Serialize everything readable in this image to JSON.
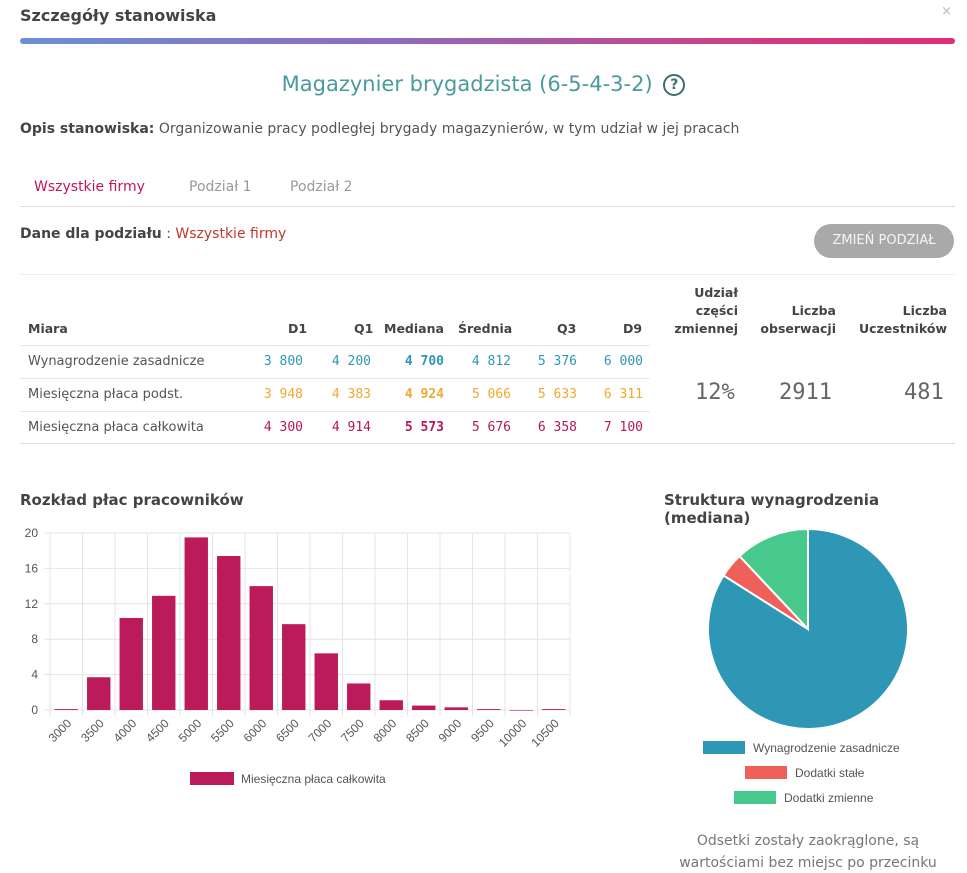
{
  "modal": {
    "title": "Szczegóły stanowiska",
    "close": "×"
  },
  "job": {
    "title": "Magazynier brygadzista (6-5-4-3-2)",
    "help": "?"
  },
  "description": {
    "label": "Opis stanowiska:",
    "text": "Organizowanie pracy podległej brygady magazynierów, w tym udział w jej pracach"
  },
  "tabs": [
    {
      "label": "Wszystkie firmy",
      "active": true
    },
    {
      "label": "Podział 1",
      "active": false
    },
    {
      "label": "Podział 2",
      "active": false
    }
  ],
  "split": {
    "label": "Dane dla podziału",
    "separator": ":",
    "value": "Wszystkie firmy",
    "button": "ZMIEŃ PODZIAŁ"
  },
  "table": {
    "headers": {
      "measure": "Miara",
      "d1": "D1",
      "q1": "Q1",
      "median": "Mediana",
      "mean": "Średnia",
      "q3": "Q3",
      "d9": "D9",
      "variable_share": [
        "Udział",
        "części",
        "zmiennej"
      ],
      "observations": [
        "Liczba",
        "obserwacji"
      ],
      "participants": [
        "Liczba",
        "Uczestników"
      ]
    },
    "rows": [
      {
        "label": "Wynagrodzenie zasadnicze",
        "values": [
          "3 800",
          "4 200",
          "4 700",
          "4 812",
          "5 376",
          "6 000"
        ],
        "color": "#2e97b5"
      },
      {
        "label": "Miesięczna płaca podst.",
        "values": [
          "3 948",
          "4 383",
          "4 924",
          "5 066",
          "5 633",
          "6 311"
        ],
        "color": "#f0a830"
      },
      {
        "label": "Miesięczna płaca całkowita",
        "values": [
          "4 300",
          "4 914",
          "5 573",
          "5 676",
          "6 358",
          "7 100"
        ],
        "color": "#b5185a"
      }
    ],
    "variable_share": "12%",
    "observations": "2911",
    "participants": "481"
  },
  "histogram": {
    "title": "Rozkład płac pracowników",
    "legend": "Miesięczna płaca całkowita"
  },
  "pie": {
    "title": "Struktura wynagrodzenia (mediana)",
    "legend": [
      "Wynagrodzenie zasadnicze",
      "Dodatki stałe",
      "Dodatki zmienne"
    ]
  },
  "footnote": [
    "Odsetki zostały zaokrąglone, są",
    "wartościami bez miejsc po przecinku"
  ],
  "chart_data": [
    {
      "type": "bar",
      "title": "Rozkład płac pracowników",
      "categories": [
        "3000",
        "3500",
        "4000",
        "4500",
        "5000",
        "5500",
        "6000",
        "6500",
        "7000",
        "7500",
        "8000",
        "8500",
        "9000",
        "9500",
        "10000",
        "10500"
      ],
      "series": [
        {
          "name": "Miesięczna płaca całkowita",
          "values": [
            0.1,
            3.7,
            10.4,
            12.9,
            19.5,
            17.4,
            14.0,
            9.7,
            6.4,
            3.0,
            1.1,
            0.5,
            0.3,
            0.1,
            0,
            0.1
          ]
        }
      ],
      "ylim": [
        0,
        20
      ],
      "yticks": [
        0,
        4,
        8,
        12,
        16,
        20
      ],
      "color": "#bb1a5b",
      "grid": true,
      "legend": "bottom"
    },
    {
      "type": "pie",
      "title": "Struktura wynagrodzenia (mediana)",
      "labels": [
        "Wynagrodzenie zasadnicze",
        "Dodatki stałe",
        "Dodatki zmienne"
      ],
      "values": [
        84,
        4,
        12
      ],
      "colors": [
        "#2e97b5",
        "#f0605a",
        "#47c98e"
      ],
      "legend": "bottom"
    }
  ]
}
